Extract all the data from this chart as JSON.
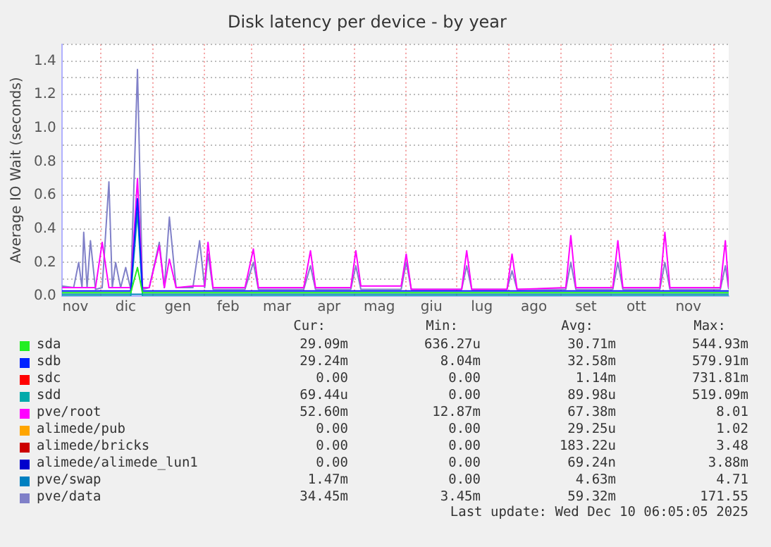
{
  "chart_data": {
    "type": "line",
    "title": "Disk latency per device - by year",
    "ylabel": "Average IO Wait (seconds)",
    "x": [
      "2024-11-08",
      "2024-11-15",
      "2024-11-18",
      "2024-11-20",
      "2024-11-21",
      "2024-11-23",
      "2024-11-25",
      "2024-11-28",
      "2024-12-02",
      "2024-12-06",
      "2024-12-08",
      "2024-12-10",
      "2024-12-13",
      "2024-12-16",
      "2024-12-19",
      "2024-12-23",
      "2024-12-26",
      "2024-12-30",
      "2025-01-05",
      "2025-01-08",
      "2025-01-11",
      "2025-01-15",
      "2025-01-25",
      "2025-01-29",
      "2025-02-01",
      "2025-02-03",
      "2025-02-06",
      "2025-02-25",
      "2025-03-02",
      "2025-03-05",
      "2025-04-01",
      "2025-04-05",
      "2025-04-08",
      "2025-04-29",
      "2025-05-02",
      "2025-05-05",
      "2025-05-29",
      "2025-06-01",
      "2025-06-04",
      "2025-07-04",
      "2025-07-07",
      "2025-07-10",
      "2025-07-31",
      "2025-08-03",
      "2025-08-06",
      "2025-09-04",
      "2025-09-07",
      "2025-09-10",
      "2025-10-02",
      "2025-10-05",
      "2025-10-08",
      "2025-10-30",
      "2025-11-02",
      "2025-11-05",
      "2025-12-05",
      "2025-12-08",
      "2025-12-10"
    ],
    "series": [
      {
        "name": "sda",
        "color": "#22ee22",
        "values": [
          0.02,
          0.02,
          0.02,
          0.02,
          0.02,
          0.02,
          0.02,
          0.02,
          0.02,
          0.02,
          0.02,
          0.02,
          0.02,
          0.02,
          0.02,
          0.17,
          0.02,
          0.02,
          0.02,
          0.02,
          0.02,
          0.02,
          0.02,
          0.02,
          0.02,
          0.02,
          0.02,
          0.02,
          0.02,
          0.02,
          0.02,
          0.02,
          0.02,
          0.02,
          0.02,
          0.02,
          0.02,
          0.02,
          0.02,
          0.02,
          0.02,
          0.02,
          0.02,
          0.02,
          0.02,
          0.02,
          0.02,
          0.02,
          0.02,
          0.02,
          0.02,
          0.02,
          0.02,
          0.02,
          0.02,
          0.02,
          0.02
        ]
      },
      {
        "name": "sdb",
        "color": "#0022ff",
        "values": [
          0.03,
          0.03,
          0.03,
          0.03,
          0.03,
          0.03,
          0.03,
          0.03,
          0.03,
          0.03,
          0.03,
          0.03,
          0.03,
          0.03,
          0.03,
          0.58,
          0.03,
          0.03,
          0.03,
          0.03,
          0.03,
          0.03,
          0.03,
          0.03,
          0.03,
          0.03,
          0.03,
          0.03,
          0.03,
          0.03,
          0.03,
          0.03,
          0.03,
          0.03,
          0.03,
          0.03,
          0.03,
          0.03,
          0.03,
          0.03,
          0.03,
          0.03,
          0.03,
          0.03,
          0.03,
          0.03,
          0.03,
          0.03,
          0.03,
          0.03,
          0.03,
          0.03,
          0.03,
          0.03,
          0.03,
          0.03,
          0.03
        ]
      },
      {
        "name": "sdc",
        "color": "#ff0000",
        "values": [
          null,
          null,
          null,
          null,
          null,
          null,
          null,
          null,
          null,
          null,
          null,
          null,
          null,
          null,
          null,
          null,
          null,
          null,
          null,
          null,
          null,
          null,
          null,
          null,
          null,
          null,
          null,
          null,
          null,
          null,
          null,
          null,
          null,
          null,
          null,
          null,
          null,
          null,
          null,
          null,
          null,
          null,
          null,
          null,
          null,
          null,
          null,
          null,
          null,
          null,
          null,
          null,
          null,
          null,
          null,
          null,
          null
        ]
      },
      {
        "name": "sdd",
        "color": "#00aaaa",
        "values": [
          0,
          0,
          0,
          0,
          0,
          0,
          0,
          0,
          0,
          0,
          0,
          0,
          0,
          0,
          0,
          0.5,
          0,
          0,
          0,
          0,
          0,
          0,
          0,
          0,
          0,
          0,
          0,
          0,
          0,
          0,
          0,
          0,
          0,
          0,
          0,
          0,
          0,
          0,
          0,
          0,
          0,
          0,
          0,
          0,
          0,
          0,
          0,
          0,
          0,
          0,
          0,
          0,
          0,
          0,
          0,
          0,
          0
        ]
      },
      {
        "name": "pve/root",
        "color": "#ff00ff",
        "values": [
          0.05,
          0.05,
          0.05,
          0.05,
          0.05,
          0.05,
          0.05,
          0.05,
          0.32,
          0.05,
          0.05,
          0.05,
          0.05,
          0.05,
          0.05,
          0.7,
          0.05,
          0.05,
          0.3,
          0.05,
          0.22,
          0.05,
          0.06,
          0.06,
          0.06,
          0.32,
          0.05,
          0.05,
          0.28,
          0.05,
          0.05,
          0.27,
          0.05,
          0.05,
          0.27,
          0.06,
          0.06,
          0.25,
          0.04,
          0.04,
          0.27,
          0.04,
          0.04,
          0.25,
          0.04,
          0.05,
          0.36,
          0.05,
          0.05,
          0.33,
          0.05,
          0.05,
          0.38,
          0.05,
          0.05,
          0.33,
          0.05
        ]
      },
      {
        "name": "alimede/pub",
        "color": "#ffa500",
        "values": [
          null,
          null,
          null,
          null,
          null,
          null,
          null,
          null,
          null,
          null,
          null,
          null,
          null,
          null,
          null,
          null,
          null,
          null,
          null,
          null,
          null,
          null,
          null,
          null,
          null,
          null,
          null,
          null,
          null,
          null,
          null,
          null,
          null,
          null,
          null,
          null,
          null,
          null,
          null,
          null,
          null,
          null,
          null,
          null,
          null,
          null,
          null,
          null,
          null,
          null,
          null,
          null,
          null,
          null,
          null,
          null,
          null
        ]
      },
      {
        "name": "alimede/bricks",
        "color": "#cc0000",
        "values": [
          null,
          null,
          null,
          null,
          null,
          null,
          null,
          null,
          null,
          null,
          null,
          null,
          null,
          null,
          null,
          null,
          null,
          null,
          null,
          null,
          null,
          null,
          null,
          null,
          null,
          null,
          null,
          null,
          null,
          null,
          null,
          null,
          null,
          null,
          null,
          null,
          null,
          null,
          null,
          null,
          null,
          null,
          null,
          null,
          null,
          null,
          null,
          null,
          null,
          null,
          null,
          null,
          null,
          null,
          null,
          null,
          null
        ]
      },
      {
        "name": "alimede/alimede_lun1",
        "color": "#0000cc",
        "values": [
          null,
          null,
          null,
          null,
          null,
          null,
          null,
          null,
          null,
          null,
          null,
          null,
          null,
          null,
          null,
          null,
          null,
          null,
          null,
          null,
          null,
          null,
          null,
          null,
          null,
          null,
          null,
          null,
          null,
          null,
          null,
          null,
          null,
          null,
          null,
          null,
          null,
          null,
          null,
          null,
          null,
          null,
          null,
          null,
          null,
          null,
          null,
          null,
          null,
          null,
          null,
          null,
          null,
          null,
          null,
          null,
          null
        ]
      },
      {
        "name": "pve/swap",
        "color": "#0080c0",
        "values": [
          0.01,
          0.01,
          0.01,
          0.01,
          0.01,
          0.01,
          0.01,
          0.01,
          0.01,
          0.01,
          0.01,
          0.01,
          0.01,
          0.01,
          0.01,
          0.01,
          0.01,
          0.01,
          0.01,
          0.01,
          0.01,
          0.01,
          0.01,
          0.01,
          0.01,
          0.01,
          0.01,
          0.01,
          0.01,
          0.01,
          0.01,
          0.01,
          0.01,
          0.01,
          0.01,
          0.01,
          0.01,
          0.01,
          0.01,
          0.01,
          0.01,
          0.01,
          0.01,
          0.01,
          0.01,
          0.01,
          0.01,
          0.01,
          0.01,
          0.01,
          0.01,
          0.01,
          0.01,
          0.01,
          0.01,
          0.01,
          0.01
        ]
      },
      {
        "name": "pve/data",
        "color": "#8080c8",
        "values": [
          0.06,
          0.05,
          0.2,
          0.05,
          0.38,
          0.05,
          0.33,
          0.04,
          0.05,
          0.68,
          0.05,
          0.2,
          0.05,
          0.17,
          0.04,
          1.35,
          0.04,
          0.05,
          0.32,
          0.05,
          0.47,
          0.05,
          0.05,
          0.33,
          0.05,
          0.25,
          0.04,
          0.04,
          0.2,
          0.04,
          0.04,
          0.18,
          0.04,
          0.04,
          0.18,
          0.04,
          0.04,
          0.2,
          0.04,
          0.04,
          0.18,
          0.04,
          0.04,
          0.15,
          0.04,
          0.04,
          0.2,
          0.04,
          0.04,
          0.2,
          0.04,
          0.04,
          0.2,
          0.04,
          0.04,
          0.18,
          0.04
        ]
      }
    ],
    "xlim": [
      "2024-11-08",
      "2025-12-10"
    ],
    "xticks": [
      {
        "value": "2024-11-16",
        "label": "nov"
      },
      {
        "value": "2024-12-01",
        "label": null
      },
      {
        "value": "2024-12-16",
        "label": "dic"
      },
      {
        "value": "2025-01-01",
        "label": null
      },
      {
        "value": "2025-01-16",
        "label": "gen"
      },
      {
        "value": "2025-02-01",
        "label": null
      },
      {
        "value": "2025-02-15",
        "label": "feb"
      },
      {
        "value": "2025-03-01",
        "label": null
      },
      {
        "value": "2025-03-16",
        "label": "mar"
      },
      {
        "value": "2025-04-01",
        "label": null
      },
      {
        "value": "2025-04-16",
        "label": "apr"
      },
      {
        "value": "2025-05-01",
        "label": null
      },
      {
        "value": "2025-05-16",
        "label": "mag"
      },
      {
        "value": "2025-06-01",
        "label": null
      },
      {
        "value": "2025-06-16",
        "label": "giu"
      },
      {
        "value": "2025-07-01",
        "label": null
      },
      {
        "value": "2025-07-16",
        "label": "lug"
      },
      {
        "value": "2025-08-01",
        "label": null
      },
      {
        "value": "2025-08-16",
        "label": "ago"
      },
      {
        "value": "2025-09-01",
        "label": null
      },
      {
        "value": "2025-09-16",
        "label": "set"
      },
      {
        "value": "2025-10-01",
        "label": null
      },
      {
        "value": "2025-10-16",
        "label": "ott"
      },
      {
        "value": "2025-11-01",
        "label": null
      },
      {
        "value": "2025-11-16",
        "label": "nov"
      },
      {
        "value": "2025-12-01",
        "label": null
      }
    ],
    "ylim": [
      0,
      1.5
    ],
    "yticks": [
      {
        "value": 0,
        "label": "0.0"
      },
      {
        "value": 0.1,
        "label": null
      },
      {
        "value": 0.2,
        "label": "0.2"
      },
      {
        "value": 0.3,
        "label": null
      },
      {
        "value": 0.4,
        "label": "0.4"
      },
      {
        "value": 0.5,
        "label": null
      },
      {
        "value": 0.6,
        "label": "0.6"
      },
      {
        "value": 0.7,
        "label": null
      },
      {
        "value": 0.8,
        "label": "0.8"
      },
      {
        "value": 0.9,
        "label": null
      },
      {
        "value": 1.0,
        "label": "1.0"
      },
      {
        "value": 1.1,
        "label": null
      },
      {
        "value": 1.2,
        "label": "1.2"
      },
      {
        "value": 1.3,
        "label": null
      },
      {
        "value": 1.4,
        "label": "1.4"
      },
      {
        "value": 1.5,
        "label": null
      }
    ],
    "grid": true,
    "legend": "bottom",
    "marker": "none",
    "line_style": "solid",
    "annotations": [
      "Cur:",
      "Min:",
      "Avg:",
      "Max:",
      "29.09m",
      "636.27u",
      "30.71m",
      "544.93m",
      "29.24m",
      "8.04m",
      "32.58m",
      "579.91m",
      "0.00",
      "0.00",
      "1.14m",
      "731.81m",
      "69.44u",
      "0.00",
      "89.98u",
      "519.09m",
      "52.60m",
      "12.87m",
      "67.38m",
      "8.01",
      "0.00",
      "0.00",
      "29.25u",
      "1.02",
      "0.00",
      "0.00",
      "183.22u",
      "3.48",
      "0.00",
      "0.00",
      "69.24n",
      "3.88m",
      "1.47m",
      "0.00",
      "4.63m",
      "4.71",
      "34.45m",
      "3.45m",
      "59.32m",
      "171.55",
      "Last update: Wed Dec 10 06:05:05 2025"
    ]
  }
}
